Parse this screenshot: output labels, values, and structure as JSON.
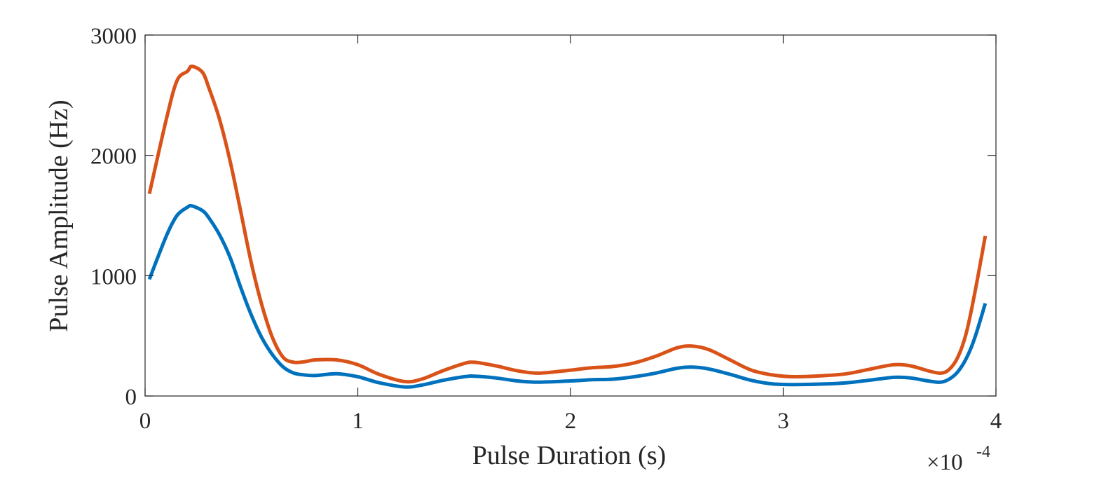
{
  "chart_data": {
    "type": "line",
    "title": "",
    "xlabel": "Pulse Duration (s)",
    "ylabel": "Pulse Amplitude (Hz)",
    "xlim": [
      0,
      4
    ],
    "ylim": [
      0,
      3000
    ],
    "x_exponent_label": "×10",
    "x_exponent_power": "-4",
    "x_units_scale": 0.0001,
    "xticks": [
      "0",
      "1",
      "2",
      "3",
      "4"
    ],
    "yticks": [
      "0",
      "1000",
      "2000",
      "3000"
    ],
    "xtick_values": [
      0,
      1,
      2,
      3,
      4
    ],
    "ytick_values": [
      0,
      1000,
      2000,
      3000
    ],
    "grid": false,
    "box": true,
    "series": [
      {
        "color": "#0072BD",
        "x": [
          0.02,
          0.1,
          0.15,
          0.2,
          0.22,
          0.27,
          0.3,
          0.35,
          0.4,
          0.45,
          0.5,
          0.55,
          0.6,
          0.65,
          0.7,
          0.75,
          0.8,
          0.9,
          1.0,
          1.1,
          1.22,
          1.3,
          1.4,
          1.5,
          1.55,
          1.65,
          1.75,
          1.85,
          2.0,
          2.1,
          2.2,
          2.3,
          2.4,
          2.5,
          2.57,
          2.65,
          2.75,
          2.85,
          2.95,
          3.05,
          3.2,
          3.3,
          3.4,
          3.52,
          3.6,
          3.68,
          3.74,
          3.78,
          3.82,
          3.86,
          3.9,
          3.95
        ],
        "y": [
          970,
          1330,
          1500,
          1570,
          1580,
          1540,
          1480,
          1340,
          1150,
          900,
          670,
          480,
          340,
          240,
          190,
          175,
          170,
          185,
          160,
          110,
          75,
          90,
          130,
          160,
          165,
          150,
          125,
          115,
          125,
          135,
          140,
          160,
          190,
          230,
          240,
          225,
          180,
          130,
          100,
          95,
          100,
          110,
          130,
          155,
          150,
          125,
          115,
          140,
          200,
          310,
          480,
          770
        ]
      },
      {
        "color": "#D95319",
        "x": [
          0.02,
          0.1,
          0.15,
          0.2,
          0.22,
          0.27,
          0.3,
          0.35,
          0.4,
          0.45,
          0.5,
          0.55,
          0.6,
          0.65,
          0.7,
          0.75,
          0.8,
          0.9,
          1.0,
          1.1,
          1.22,
          1.3,
          1.4,
          1.5,
          1.55,
          1.65,
          1.75,
          1.85,
          2.0,
          2.1,
          2.2,
          2.3,
          2.4,
          2.5,
          2.57,
          2.65,
          2.75,
          2.85,
          2.95,
          3.05,
          3.2,
          3.3,
          3.4,
          3.52,
          3.6,
          3.68,
          3.74,
          3.78,
          3.82,
          3.86,
          3.9,
          3.95
        ],
        "y": [
          1680,
          2300,
          2620,
          2700,
          2740,
          2690,
          2560,
          2300,
          1950,
          1530,
          1100,
          750,
          480,
          320,
          280,
          285,
          300,
          300,
          260,
          180,
          120,
          140,
          210,
          270,
          280,
          250,
          210,
          190,
          215,
          235,
          245,
          275,
          330,
          400,
          415,
          385,
          300,
          215,
          175,
          160,
          170,
          185,
          220,
          260,
          250,
          210,
          190,
          220,
          320,
          520,
          850,
          1330
        ]
      }
    ]
  }
}
